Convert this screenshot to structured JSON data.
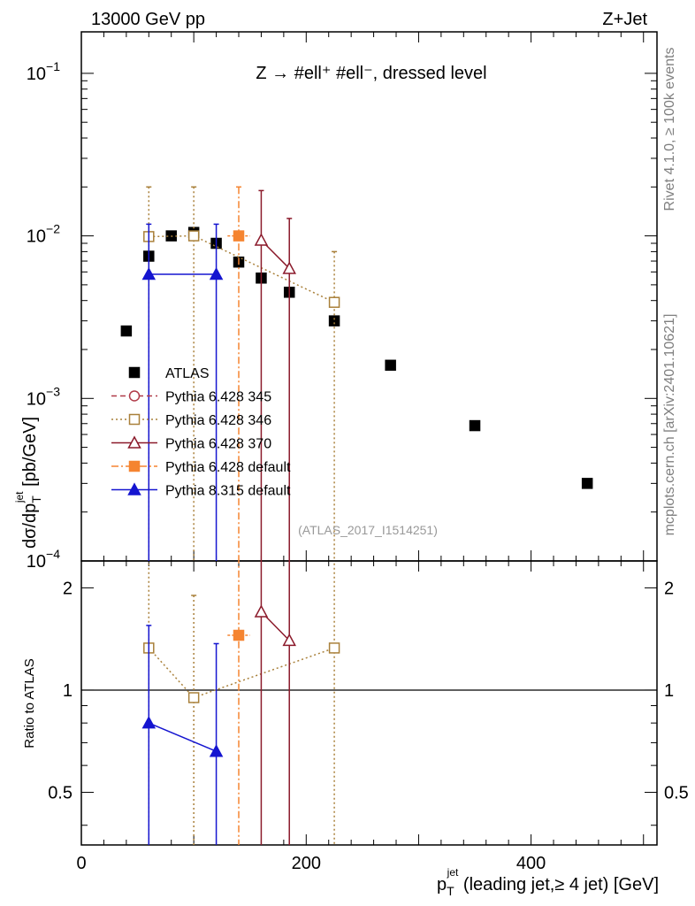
{
  "header": {
    "energy_label": "13000 GeV pp",
    "process_label": "Z+Jet",
    "plot_title": "Z → #ell⁺ #ell⁻, dressed level",
    "side_label_rivet": "Rivet 4.1.0, ≥ 100k events",
    "side_label_site": "mcplots.cern.ch [arXiv:2401.10621]",
    "analysis_id": "(ATLAS_2017_I1514251)"
  },
  "chart_data": {
    "type": "scatter",
    "x_axis": {
      "label": "p_T^jet (leading jet,≥ 4 jet) [GeV]",
      "label_main": "p",
      "label_sub": "T",
      "label_sup": "jet",
      "label_rest": " (leading jet,≥ 4 jet) [GeV]",
      "range": [
        0,
        512
      ],
      "ticks": [
        0,
        200,
        400
      ],
      "tick_labels": [
        "0",
        "200",
        "400"
      ]
    },
    "main_panel": {
      "ylabel": "dσ/dp_T^jet [pb/GeV]",
      "ylabel_main": "dσ/dp",
      "ylabel_sub": "T",
      "ylabel_sup": "jet",
      "ylabel_rest": " [pb/GeV]",
      "yscale": "log",
      "ylim": [
        0.0001,
        0.18
      ],
      "ticks": [
        0.0001,
        0.001,
        0.01,
        0.1
      ],
      "tick_labels": [
        {
          "base": "10",
          "exp": "−4"
        },
        {
          "base": "10",
          "exp": "−3"
        },
        {
          "base": "10",
          "exp": "−2"
        },
        {
          "base": "10",
          "exp": "−1"
        }
      ]
    },
    "ratio_panel": {
      "ylabel": "Ratio to ATLAS",
      "yscale": "log",
      "ylim": [
        0.35,
        2.4
      ],
      "ticks": [
        0.5,
        1,
        2
      ],
      "tick_labels": [
        "0.5",
        "1",
        "2"
      ],
      "reference": 1
    },
    "series": [
      {
        "name": "ATLAS",
        "color": "#000000",
        "marker": "filled-square",
        "line": "none",
        "points": [
          {
            "x": 40,
            "y": 0.0026
          },
          {
            "x": 60,
            "y": 0.0075
          },
          {
            "x": 80,
            "y": 0.01
          },
          {
            "x": 100,
            "y": 0.0105
          },
          {
            "x": 120,
            "y": 0.009
          },
          {
            "x": 140,
            "y": 0.0069
          },
          {
            "x": 160,
            "y": 0.0055
          },
          {
            "x": 185,
            "y": 0.0045
          },
          {
            "x": 225,
            "y": 0.003
          },
          {
            "x": 275,
            "y": 0.0016
          },
          {
            "x": 350,
            "y": 0.00068
          },
          {
            "x": 450,
            "y": 0.0003
          }
        ]
      },
      {
        "name": "Pythia 6.428 345",
        "color": "#b03a48",
        "marker": "open-circle",
        "line": "dashed",
        "points": []
      },
      {
        "name": "Pythia 6.428 346",
        "color": "#a9803a",
        "marker": "open-square",
        "line": "dotted",
        "points": [
          {
            "x": 60,
            "y": 0.0099,
            "yhi": 0.02,
            "ylo": 1e-05
          },
          {
            "x": 100,
            "y": 0.01,
            "yhi": 0.02,
            "ylo": 1e-05
          },
          {
            "x": 225,
            "y": 0.0039,
            "yhi": 0.008,
            "ylo": 1e-05
          }
        ],
        "ratio": [
          {
            "x": 60,
            "r": 1.33,
            "rhi": 3.0,
            "rlo": 0.3
          },
          {
            "x": 100,
            "r": 0.95,
            "rhi": 1.9,
            "rlo": 0.3
          },
          {
            "x": 225,
            "r": 1.33,
            "rhi": 3.0,
            "rlo": 0.3
          }
        ]
      },
      {
        "name": "Pythia 6.428 370",
        "color": "#8b1a2b",
        "marker": "open-triangle",
        "line": "solid",
        "points": [
          {
            "x": 160,
            "y": 0.0094,
            "yhi": 0.019,
            "ylo": 1e-05
          },
          {
            "x": 185,
            "y": 0.0063,
            "yhi": 0.0128,
            "ylo": 1e-05
          }
        ],
        "ratio": [
          {
            "x": 160,
            "r": 1.7,
            "rhi": 3.0,
            "rlo": 0.3
          },
          {
            "x": 185,
            "r": 1.4,
            "rhi": 3.0,
            "rlo": 0.3
          }
        ]
      },
      {
        "name": "Pythia 6.428 default",
        "color": "#f58430",
        "marker": "filled-square",
        "line": "dashdot",
        "points": [
          {
            "x": 140,
            "y": 0.01,
            "yhi": 0.02,
            "ylo": 1e-05,
            "xerr": 10
          }
        ],
        "ratio": [
          {
            "x": 140,
            "r": 1.45,
            "rhi": 3.0,
            "rlo": 0.3,
            "xerr": 10
          }
        ]
      },
      {
        "name": "Pythia 8.315 default",
        "color": "#1515d0",
        "marker": "filled-triangle",
        "line": "solid",
        "points": [
          {
            "x": 60,
            "y": 0.0058,
            "yhi": 0.0118,
            "ylo": 1e-05
          },
          {
            "x": 120,
            "y": 0.0058,
            "yhi": 0.0118,
            "ylo": 1e-05
          }
        ],
        "ratio": [
          {
            "x": 60,
            "r": 0.8,
            "rhi": 1.55,
            "rlo": 0.3
          },
          {
            "x": 120,
            "r": 0.66,
            "rhi": 1.37,
            "rlo": 0.3
          }
        ]
      }
    ],
    "legend": {
      "placement": "lower-left of main panel",
      "entries": [
        "ATLAS",
        "Pythia 6.428 345",
        "Pythia 6.428 346",
        "Pythia 6.428 370",
        "Pythia 6.428 default",
        "Pythia 8.315 default"
      ]
    }
  }
}
